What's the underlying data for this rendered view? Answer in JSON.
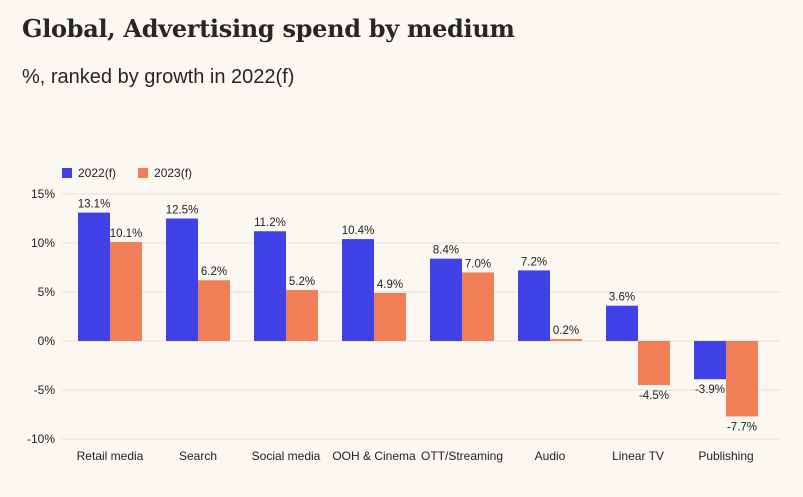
{
  "title": "Global, Advertising spend by medium",
  "subtitle": "%, ranked by growth in 2022(f)",
  "colors": {
    "background": "#fbf8f1",
    "grid": "#e4e0d7"
  },
  "chart_data": {
    "type": "bar",
    "title": "Global, Advertising spend by medium",
    "subtitle": "%, ranked by growth in 2022(f)",
    "categories": [
      "Retail media",
      "Search",
      "Social media",
      "OOH & Cinema",
      "OTT/Streaming",
      "Audio",
      "Linear TV",
      "Publishing"
    ],
    "series": [
      {
        "name": "2022(f)",
        "color": "#4141e8",
        "values": [
          13.1,
          12.5,
          11.2,
          10.4,
          8.4,
          7.2,
          3.6,
          -3.9
        ],
        "labels": [
          "13.1%",
          "12.5%",
          "11.2%",
          "10.4%",
          "8.4%",
          "7.2%",
          "3.6%",
          "-3.9%"
        ]
      },
      {
        "name": "2023(f)",
        "color": "#f07f57",
        "values": [
          10.1,
          6.2,
          5.2,
          4.9,
          7.0,
          0.2,
          -4.5,
          -7.7
        ],
        "labels": [
          "10.1%",
          "6.2%",
          "5.2%",
          "4.9%",
          "7.0%",
          "0.2%",
          "-4.5%",
          "-7.7%"
        ]
      }
    ],
    "yticks": [
      15,
      10,
      5,
      0,
      -5,
      -10
    ],
    "ytick_labels": [
      "15%",
      "10%",
      "5%",
      "0%",
      "-5%",
      "-10%"
    ],
    "ylim": [
      -10,
      15
    ],
    "grid": true,
    "legend": "top-left"
  }
}
